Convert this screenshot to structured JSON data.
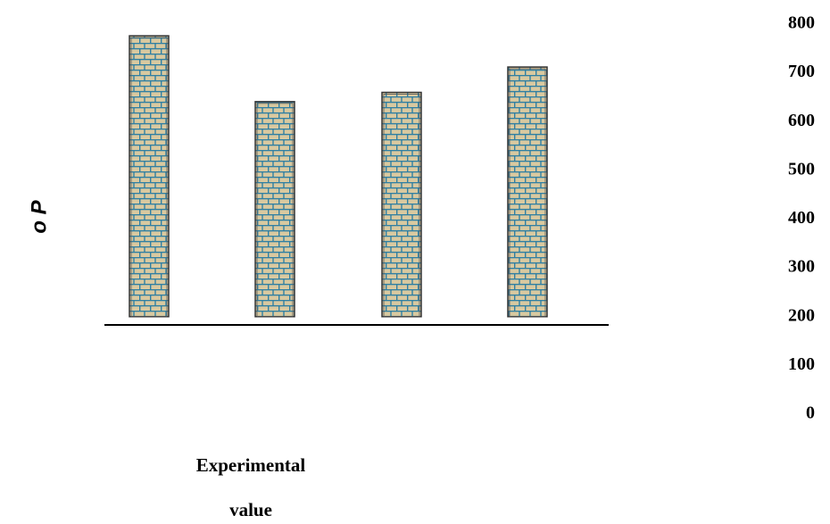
{
  "chart_data": {
    "type": "bar",
    "categories": [
      "",
      "",
      "",
      ""
    ],
    "values": [
      776,
      641,
      660,
      712
    ],
    "ylabel": "o P",
    "xlabel_lines": [
      "Experimental",
      "value"
    ],
    "ylim": [
      0,
      800
    ],
    "yticks": [
      800,
      700,
      600,
      500,
      400,
      300,
      200,
      100,
      0
    ],
    "ytick_labels": [
      "800",
      "700",
      "600",
      "500",
      "400",
      "300",
      "200",
      "100",
      "0"
    ],
    "baseline": 200,
    "grid": false,
    "legend": "none",
    "colors": {
      "bar_fill": "#d9c9a0",
      "bar_pattern": "#2f7fa3",
      "bar_border": "#333333",
      "axis": "#000000"
    }
  }
}
